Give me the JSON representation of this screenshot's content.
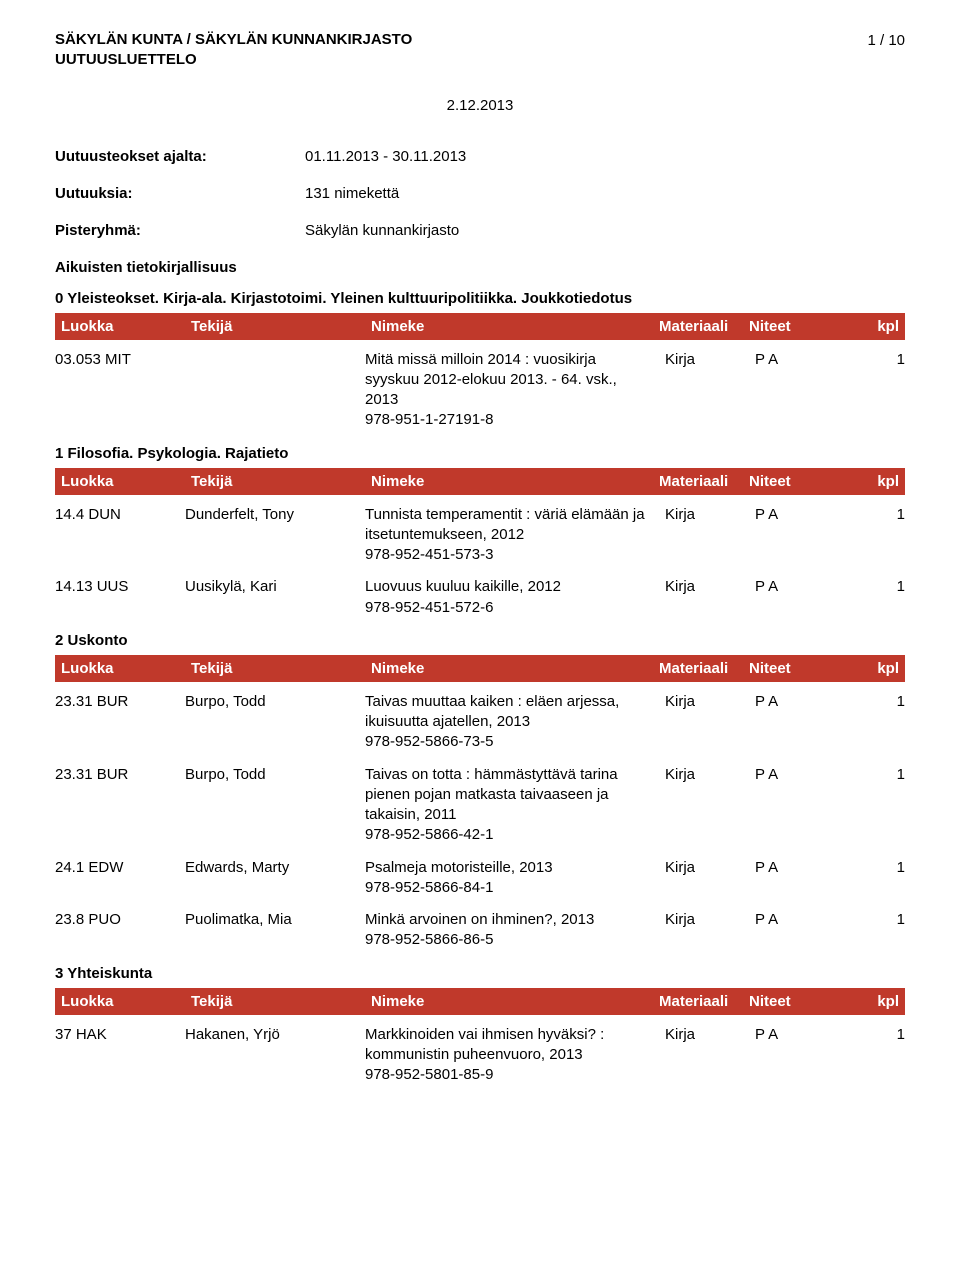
{
  "header": {
    "org_line1": "SÄKYLÄN KUNTA / SÄKYLÄN KUNNANKIRJASTO",
    "org_line2": "UUTUUSLUETTELO",
    "page_indicator": "1 / 10",
    "report_date": "2.12.2013"
  },
  "meta": [
    {
      "key": "Uutuusteokset ajalta:",
      "val": "01.11.2013 - 30.11.2013"
    },
    {
      "key": "Uutuuksia:",
      "val": "131 nimekettä"
    },
    {
      "key": "Pisteryhmä:",
      "val": "Säkylän kunnankirjasto"
    }
  ],
  "columns": {
    "class": "Luokka",
    "author": "Tekijä",
    "title": "Nimeke",
    "material": "Materiaali",
    "shelf": "Niteet",
    "qty": "kpl"
  },
  "colors": {
    "header_bar_bg": "#c0392b",
    "header_bar_fg": "#ffffff",
    "page_bg": "#ffffff",
    "text": "#000000"
  },
  "typography": {
    "base_font_size_pt": 11,
    "font_family": "Arial"
  },
  "sections": [
    {
      "title": "Aikuisten tietokirjallisuus",
      "groups": [
        {
          "subheading": "0 Yleisteokset. Kirja-ala. Kirjastotoimi. Yleinen kulttuuripolitiikka. Joukkotiedotus",
          "entries": [
            {
              "class": "03.053 MIT",
              "author": "",
              "title": "Mitä missä milloin 2014 : vuosikirja syyskuu 2012-elokuu 2013. - 64. vsk., 2013\n978-951-1-27191-8",
              "material": "Kirja",
              "shelf": "P A",
              "qty": "1"
            }
          ]
        },
        {
          "subheading": "1 Filosofia. Psykologia. Rajatieto",
          "entries": [
            {
              "class": "14.4 DUN",
              "author": "Dunderfelt, Tony",
              "title": "Tunnista temperamentit : väriä elämään ja itsetuntemukseen, 2012\n978-952-451-573-3",
              "material": "Kirja",
              "shelf": "P A",
              "qty": "1"
            },
            {
              "class": "14.13 UUS",
              "author": "Uusikylä, Kari",
              "title": "Luovuus kuuluu kaikille, 2012\n978-952-451-572-6",
              "material": "Kirja",
              "shelf": "P A",
              "qty": "1"
            }
          ]
        },
        {
          "subheading": "2 Uskonto",
          "entries": [
            {
              "class": "23.31 BUR",
              "author": "Burpo, Todd",
              "title": "Taivas muuttaa kaiken : eläen arjessa, ikuisuutta ajatellen, 2013\n978-952-5866-73-5",
              "material": "Kirja",
              "shelf": "P A",
              "qty": "1"
            },
            {
              "class": "23.31 BUR",
              "author": "Burpo, Todd",
              "title": "Taivas on totta : hämmästyttävä tarina pienen pojan matkasta taivaaseen ja takaisin, 2011\n978-952-5866-42-1",
              "material": "Kirja",
              "shelf": "P A",
              "qty": "1"
            },
            {
              "class": "24.1 EDW",
              "author": "Edwards, Marty",
              "title": "Psalmeja motoristeille, 2013\n978-952-5866-84-1",
              "material": "Kirja",
              "shelf": "P A",
              "qty": "1"
            },
            {
              "class": "23.8 PUO",
              "author": "Puolimatka, Mia",
              "title": "Minkä arvoinen on ihminen?, 2013\n978-952-5866-86-5",
              "material": "Kirja",
              "shelf": "P A",
              "qty": "1"
            }
          ]
        },
        {
          "subheading": "3 Yhteiskunta",
          "entries": [
            {
              "class": "37 HAK",
              "author": "Hakanen, Yrjö",
              "title": "Markkinoiden vai ihmisen hyväksi? : kommunistin puheenvuoro, 2013\n978-952-5801-85-9",
              "material": "Kirja",
              "shelf": "P A",
              "qty": "1"
            }
          ]
        }
      ]
    }
  ]
}
